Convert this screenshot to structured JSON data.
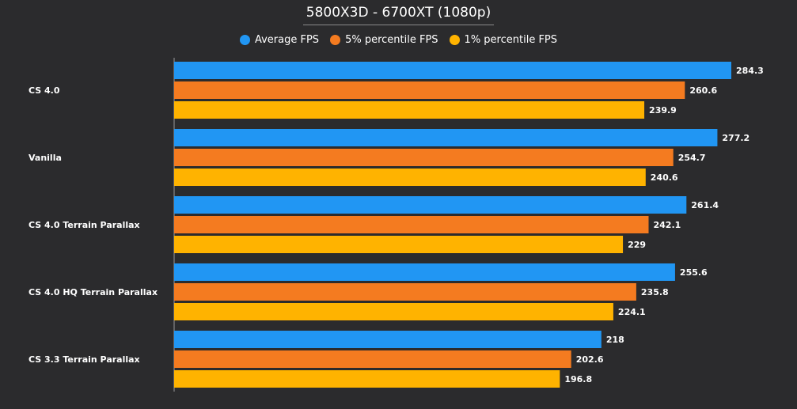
{
  "chart_data": {
    "type": "bar",
    "orientation": "horizontal",
    "title": "5800X3D - 6700XT (1080p)",
    "categories": [
      "CS 4.0",
      "Vanilla",
      "CS 4.0 Terrain Parallax",
      "CS 4.0 HQ Terrain Parallax",
      "CS 3.3 Terrain Parallax"
    ],
    "series": [
      {
        "name": "Average FPS",
        "color": "#2196f3",
        "values": [
          284.3,
          277.2,
          261.4,
          255.6,
          218
        ]
      },
      {
        "name": "5% percentile FPS",
        "color": "#f47b20",
        "values": [
          260.6,
          254.7,
          242.1,
          235.8,
          202.6
        ]
      },
      {
        "name": "1% percentile FPS",
        "color": "#ffb300",
        "values": [
          239.9,
          240.6,
          229,
          224.1,
          196.8
        ]
      }
    ],
    "value_labels": [
      [
        "284.3",
        "260.6",
        "239.9"
      ],
      [
        "277.2",
        "254.7",
        "240.6"
      ],
      [
        "261.4",
        "242.1",
        "229"
      ],
      [
        "255.6",
        "235.8",
        "224.1"
      ],
      [
        "218",
        "202.6",
        "196.8"
      ]
    ],
    "xlim": [
      0,
      284.3
    ],
    "legend_position": "top-center",
    "grid": false,
    "colors": {
      "background": "#2b2b2d",
      "axis": "#9a9a9a",
      "text": "#ffffff"
    }
  }
}
